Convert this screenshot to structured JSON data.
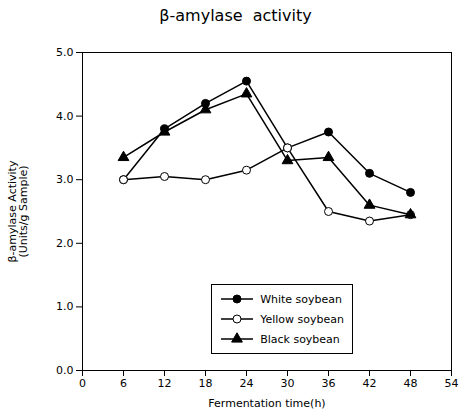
{
  "chart_data": {
    "type": "line",
    "title": "β-amylase  activity",
    "xlabel": "Fermentation time(h)",
    "ylabel": "β-amylase Activity\n(Units/g Sample)",
    "x": [
      6,
      12,
      18,
      24,
      30,
      36,
      42,
      48
    ],
    "series": [
      {
        "name": "White soybean",
        "color": "#000000",
        "marker": "circle",
        "values": [
          3.0,
          3.8,
          4.2,
          4.55,
          3.5,
          3.75,
          3.1,
          2.8
        ]
      },
      {
        "name": "Yellow soybean",
        "color": "#000000",
        "marker": "open_circle",
        "values": [
          3.0,
          3.05,
          3.0,
          3.15,
          3.5,
          2.5,
          2.35,
          2.45
        ]
      },
      {
        "name": "Black soybean",
        "color": "#000000",
        "marker": "triangle",
        "values": [
          3.35,
          3.75,
          4.1,
          4.35,
          3.3,
          3.35,
          2.6,
          2.45
        ]
      }
    ],
    "xlim": [
      0,
      54
    ],
    "ylim": [
      0.0,
      5.0
    ],
    "xticks": [
      0,
      6,
      12,
      18,
      24,
      30,
      36,
      42,
      48,
      54
    ],
    "yticks": [
      {
        "value": 0.0,
        "label": "0.0"
      },
      {
        "value": 1.0,
        "label": "1.0"
      },
      {
        "value": 2.0,
        "label": "2.0"
      },
      {
        "value": 3.0,
        "label": "3.0"
      },
      {
        "value": 4.0,
        "label": "4.0"
      },
      {
        "value": 5.0,
        "label": "5.0"
      }
    ],
    "grid": false,
    "legend": "lower center"
  }
}
